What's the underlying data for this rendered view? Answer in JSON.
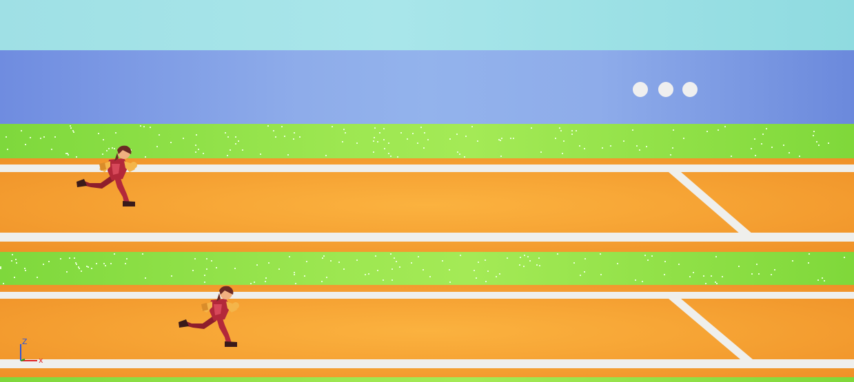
{
  "scene": {
    "colors": {
      "sky": "#a9e6ea",
      "stands": "#8eacea",
      "grass": "#9de751",
      "track": "#f7a636",
      "lane_line": "#efefec",
      "runner_suit": "#b3283a",
      "runner_skin": "#f4b54a",
      "runner_hair": "#6b2a24"
    },
    "lanes": [
      {
        "lane": 1,
        "runner": "runner-1"
      },
      {
        "lane": 2,
        "runner": "runner-2"
      }
    ],
    "indicator_dots": 3
  },
  "gizmo": {
    "z_label": "Z",
    "x_label": "X",
    "z_color": "#2e55d8",
    "x_color": "#e02020",
    "y_color": "#22aa22"
  }
}
